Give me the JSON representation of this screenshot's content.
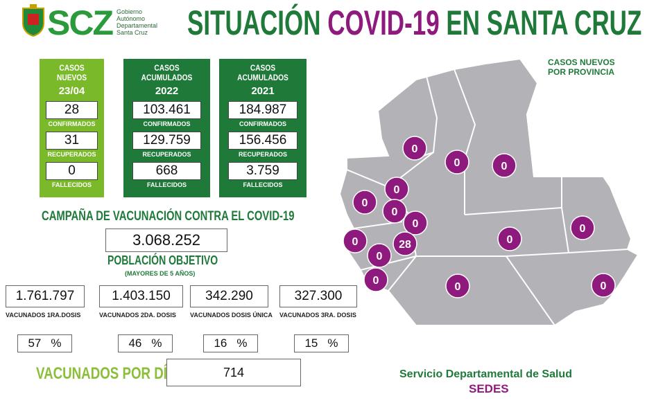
{
  "header": {
    "logo_text": "SCZ",
    "gov_lines": [
      "Gobierno",
      "Autónomo",
      "Departamental",
      "Santa Cruz"
    ],
    "title_parts": [
      "SITUACIÓN ",
      "COVID-19",
      " EN SANTA CRUZ"
    ]
  },
  "cases": [
    {
      "title": "CASOS NUEVOS",
      "subtitle": "23/04",
      "rows": [
        {
          "value": "28",
          "label": "CONFIRMADOS"
        },
        {
          "value": "31",
          "label": "RECUPERADOS"
        },
        {
          "value": "0",
          "label": "FALLECIDOS"
        }
      ]
    },
    {
      "title": "CASOS ACUMULADOS",
      "subtitle": "2022",
      "rows": [
        {
          "value": "103.461",
          "label": "CONFIRMADOS"
        },
        {
          "value": "129.759",
          "label": "RECUPERADOS"
        },
        {
          "value": "668",
          "label": "FALLECIDOS"
        }
      ]
    },
    {
      "title": "CASOS ACUMULADOS",
      "subtitle": "2021",
      "rows": [
        {
          "value": "184.987",
          "label": "CONFIRMADOS"
        },
        {
          "value": "156.456",
          "label": "RECUPERADOS"
        },
        {
          "value": "3.759",
          "label": "FALLECIDOS"
        }
      ]
    }
  ],
  "vaccination": {
    "title": "CAMPAÑA DE VACUNACIÓN CONTRA EL COVID-19",
    "target_value": "3.068.252",
    "target_label": "POBLACIÓN OBJETIVO",
    "target_note": "(MAYORES DE 5 AÑOS)",
    "doses": [
      {
        "value": "1.761.797",
        "label": "VACUNADOS 1RA.DOSIS",
        "percent": "57"
      },
      {
        "value": "1.403.150",
        "label": "VACUNADOS 2DA. DOSIS",
        "percent": "46"
      },
      {
        "value": "342.290",
        "label": "VACUNADOS DOSIS ÚNICA",
        "percent": "16"
      },
      {
        "value": "327.300",
        "label": "VACUNADOS 3RA. DOSIS",
        "percent": "15"
      }
    ],
    "percent_sign": "%",
    "per_day_label": "VACUNADOS POR DÍA",
    "per_day_value": "714"
  },
  "map": {
    "title_lines": [
      "CASOS NUEVOS",
      "POR PROVINCIA"
    ],
    "values": [
      "0",
      "0",
      "0",
      "0",
      "0",
      "0",
      "0",
      "0",
      "28",
      "0",
      "0",
      "0",
      "0",
      "0",
      "0"
    ]
  },
  "footer": {
    "line1": "Servicio Departamental de Salud",
    "line2": "SEDES"
  }
}
